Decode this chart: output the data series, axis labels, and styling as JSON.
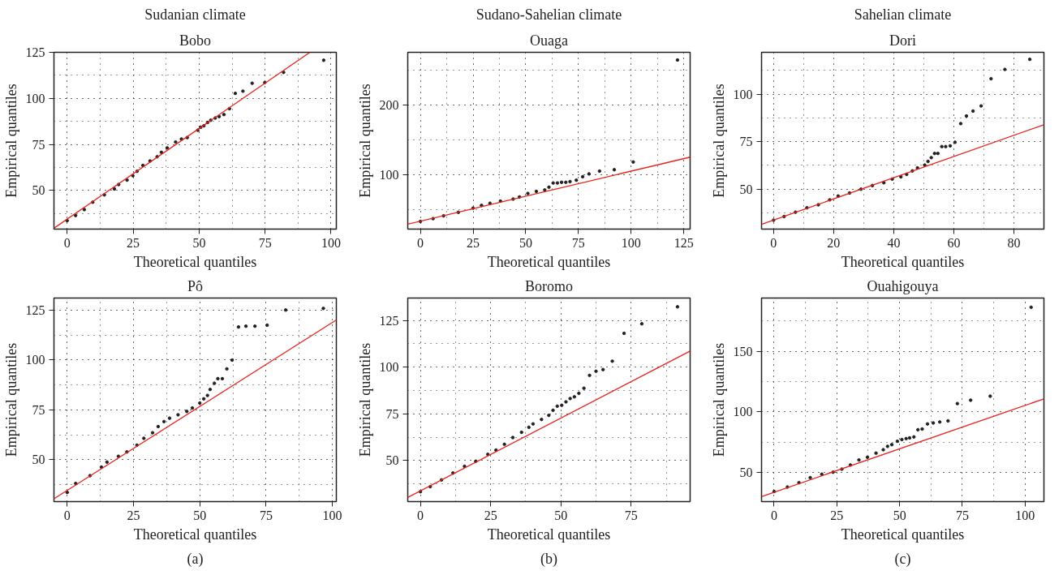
{
  "chart_data": [
    {
      "type": "scatter",
      "title": "Sudanian climate",
      "subtitle": "Bobo",
      "xlabel": "Theoretical quantiles",
      "ylabel": "Empirical quantiles",
      "xlim": [
        -5,
        102
      ],
      "ylim": [
        29,
        125
      ],
      "xticks": [
        0,
        25,
        50,
        75,
        100
      ],
      "yticks": [
        50,
        75,
        100,
        125
      ],
      "grid": true,
      "series": [
        {
          "marker": "circle",
          "color": "#222222",
          "x": [
            0,
            3.2,
            6.5,
            9.7,
            14.1,
            17.9,
            19.5,
            22.7,
            24.9,
            26.5,
            28.7,
            31.4,
            34.1,
            35.7,
            37.9,
            41.1,
            43.3,
            45.5,
            49.5,
            50.6,
            51.8,
            53.2,
            54.4,
            56.1,
            57.6,
            59.4,
            61.5,
            63.7,
            66.6,
            70.1,
            74.9,
            82.0,
            97.2
          ],
          "values": [
            33.6,
            36.4,
            39.6,
            43.6,
            47.6,
            50.8,
            53.2,
            55.6,
            58.0,
            60.4,
            63.6,
            66.0,
            68.3,
            70.7,
            73.1,
            76.3,
            77.9,
            78.7,
            82.7,
            84.3,
            85.1,
            86.9,
            88.1,
            89.3,
            90.1,
            91.2,
            94.4,
            102.7,
            103.9,
            108.2,
            108.6,
            114.1,
            120.7
          ]
        },
        {
          "type": "line",
          "color": "#e8221b",
          "x": [
            -5,
            92
          ],
          "values": [
            29.5,
            125
          ]
        }
      ]
    },
    {
      "type": "scatter",
      "title": "Sudano-Sahelian climate",
      "subtitle": "Ouaga",
      "xlabel": "Theoretical quantiles",
      "ylabel": "Empirical quantiles",
      "xlim": [
        -6,
        128
      ],
      "ylim": [
        22,
        275
      ],
      "xticks": [
        0,
        25,
        50,
        75,
        100,
        125
      ],
      "yticks": [
        100,
        200
      ],
      "grid": true,
      "series": [
        {
          "marker": "circle",
          "color": "#222222",
          "x": [
            0,
            6,
            11,
            18,
            25,
            29,
            33,
            38,
            44,
            47,
            51,
            55,
            59,
            61,
            63,
            65,
            67,
            69,
            71,
            74,
            77,
            80,
            85,
            92,
            101,
            122
          ],
          "values": [
            33,
            37,
            41,
            46,
            52,
            56,
            59,
            62,
            65,
            68,
            73,
            76,
            78,
            82,
            88,
            88,
            89,
            89,
            90,
            92,
            97,
            101,
            105,
            107,
            118,
            264
          ]
        },
        {
          "type": "line",
          "color": "#e8221b",
          "x": [
            -6,
            128
          ],
          "values": [
            29,
            125
          ]
        }
      ]
    },
    {
      "type": "scatter",
      "title": "Sahelian climate",
      "subtitle": "Dori",
      "xlabel": "Theoretical quantiles",
      "ylabel": "Empirical quantiles",
      "xlim": [
        -4,
        90
      ],
      "ylim": [
        29,
        122
      ],
      "xticks": [
        0,
        20,
        40,
        60,
        80
      ],
      "yticks": [
        50,
        75,
        100
      ],
      "grid": true,
      "series": [
        {
          "marker": "circle",
          "color": "#222222",
          "x": [
            0,
            3.5,
            7.3,
            11.1,
            14.9,
            18.7,
            21.5,
            25.3,
            29.1,
            32.9,
            36.7,
            39.5,
            42.4,
            44.3,
            46.2,
            47.9,
            50.3,
            51.4,
            52.5,
            53.6,
            54.7,
            56.0,
            57.3,
            58.8,
            60.4,
            62.3,
            64.2,
            66.4,
            69.1,
            72.4,
            77.0,
            85.3
          ],
          "values": [
            33.7,
            35.6,
            37.9,
            40.2,
            41.8,
            44.4,
            46.4,
            48.0,
            50.0,
            51.9,
            53.4,
            55.3,
            56.5,
            57.8,
            59.6,
            61.2,
            62.7,
            64.6,
            66.6,
            68.8,
            68.8,
            72.4,
            72.4,
            72.8,
            74.7,
            84.5,
            88.5,
            91.1,
            93.8,
            108.1,
            113.0,
            118.3
          ]
        },
        {
          "type": "line",
          "color": "#e8221b",
          "x": [
            -4,
            90
          ],
          "values": [
            31.5,
            83.9
          ]
        }
      ]
    },
    {
      "type": "scatter",
      "title": "Pô",
      "xlabel": "Theoretical quantiles",
      "ylabel": "Empirical quantiles",
      "annotations": [
        "(a)"
      ],
      "xlim": [
        -5,
        101.5
      ],
      "ylim": [
        29,
        131
      ],
      "xticks": [
        0,
        25,
        50,
        75,
        100
      ],
      "yticks": [
        50,
        75,
        100,
        125
      ],
      "grid": true,
      "series": [
        {
          "marker": "circle",
          "color": "#222222",
          "x": [
            0,
            3.2,
            8.6,
            12.9,
            15.0,
            19.3,
            22.5,
            26.3,
            28.9,
            32.2,
            34.3,
            36.5,
            38.6,
            41.8,
            45.1,
            47.2,
            50.0,
            51.5,
            52.9,
            53.9,
            55.5,
            56.8,
            58.5,
            60.2,
            62.2,
            64.6,
            67.4,
            70.8,
            75.4,
            82.4,
            96.6
          ],
          "values": [
            33.6,
            38.1,
            42.0,
            46.3,
            48.8,
            51.7,
            53.9,
            57.3,
            60.7,
            63.5,
            66.6,
            69.1,
            70.8,
            72.5,
            74.2,
            75.9,
            78.4,
            80.5,
            82.2,
            85.2,
            88.3,
            90.6,
            90.6,
            95.5,
            99.9,
            116.5,
            116.9,
            116.9,
            117.4,
            125.0,
            125.8
          ]
        },
        {
          "type": "line",
          "color": "#e8221b",
          "x": [
            -5,
            101.5
          ],
          "values": [
            30.4,
            120.0
          ]
        }
      ]
    },
    {
      "type": "scatter",
      "title": "Boromo",
      "xlabel": "Theoretical quantiles",
      "ylabel": "Empirical quantiles",
      "annotations": [
        "(b)"
      ],
      "xlim": [
        -4.5,
        96
      ],
      "ylim": [
        28,
        137
      ],
      "xticks": [
        0,
        25,
        50,
        75
      ],
      "yticks": [
        50,
        75,
        100,
        125
      ],
      "grid": true,
      "series": [
        {
          "marker": "circle",
          "color": "#222222",
          "x": [
            0,
            3.5,
            7.5,
            11.6,
            15.7,
            19.7,
            24.0,
            26.9,
            29.9,
            32.9,
            36.0,
            38.6,
            40.1,
            43.1,
            45.7,
            47.2,
            48.7,
            50.3,
            51.8,
            53.3,
            54.8,
            56.4,
            58.2,
            60.2,
            62.5,
            65.0,
            68.3,
            72.5,
            78.8,
            91.5
          ],
          "values": [
            33.3,
            36.0,
            39.6,
            43.3,
            46.9,
            49.6,
            53.3,
            55.6,
            58.7,
            62.3,
            65.1,
            67.8,
            69.6,
            72.0,
            74.2,
            76.9,
            79.1,
            79.6,
            81.4,
            83.2,
            84.1,
            86.0,
            88.7,
            95.6,
            97.8,
            98.7,
            103.2,
            118.1,
            123.2,
            132.3
          ]
        },
        {
          "type": "line",
          "color": "#e8221b",
          "x": [
            -4.5,
            96
          ],
          "values": [
            30.2,
            108.6
          ]
        }
      ]
    },
    {
      "type": "scatter",
      "title": "Ouahigouya",
      "xlabel": "Theoretical quantiles",
      "ylabel": "Empirical quantiles",
      "annotations": [
        "(c)"
      ],
      "xlim": [
        -5,
        107.5
      ],
      "ylim": [
        26,
        194
      ],
      "xticks": [
        0,
        25,
        50,
        75,
        100
      ],
      "yticks": [
        50,
        100,
        150
      ],
      "grid": true,
      "series": [
        {
          "marker": "circle",
          "color": "#222222",
          "x": [
            0,
            5.3,
            9.9,
            14.4,
            19.0,
            23.5,
            27.0,
            30.4,
            33.8,
            37.2,
            40.6,
            43.5,
            45.2,
            46.9,
            49.1,
            50.9,
            52.6,
            54.0,
            55.7,
            57.3,
            59.0,
            61.1,
            63.4,
            66.0,
            69.3,
            73.0,
            78.3,
            86.1,
            102.4
          ],
          "values": [
            34.3,
            38.0,
            41.6,
            45.8,
            48.6,
            50.3,
            52.8,
            56.2,
            60.4,
            62.6,
            66.0,
            68.8,
            71.6,
            73.0,
            75.8,
            77.2,
            78.0,
            78.6,
            79.4,
            85.3,
            85.9,
            90.1,
            90.9,
            91.7,
            92.6,
            106.9,
            109.7,
            113.0,
            186.4
          ]
        },
        {
          "type": "line",
          "color": "#e8221b",
          "x": [
            -5,
            107.5
          ],
          "values": [
            30.1,
            110.8
          ]
        }
      ]
    }
  ]
}
